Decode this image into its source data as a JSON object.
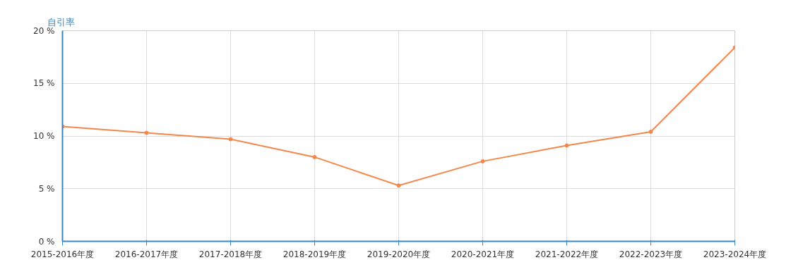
{
  "chart_data": {
    "type": "line",
    "ylabel": "自引率",
    "categories": [
      "2015-2016年度",
      "2016-2017年度",
      "2017-2018年度",
      "2018-2019年度",
      "2019-2020年度",
      "2020-2021年度",
      "2021-2022年度",
      "2022-2023年度",
      "2023-2024年度"
    ],
    "series": [
      {
        "color": "#f4874b",
        "values": [
          10.9,
          10.3,
          9.7,
          8.0,
          5.3,
          7.6,
          9.1,
          10.4,
          18.4
        ]
      }
    ],
    "ylim": [
      0,
      20
    ],
    "yticks": [
      {
        "value": 0,
        "label": "0 %"
      },
      {
        "value": 5,
        "label": "5 %"
      },
      {
        "value": 10,
        "label": "10 %"
      },
      {
        "value": 15,
        "label": "15 %"
      },
      {
        "value": 20,
        "label": "20 %"
      }
    ],
    "grid": true,
    "marker": "circle",
    "line_style": "solid"
  }
}
